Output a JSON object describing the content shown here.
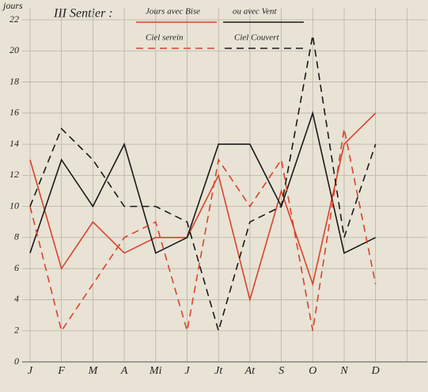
{
  "chart_data": {
    "type": "line",
    "title": "III Sentier :",
    "y_label": "jours",
    "categories": [
      "J",
      "F",
      "M",
      "A",
      "Mi",
      "J",
      "Jt",
      "At",
      "S",
      "O",
      "N",
      "D"
    ],
    "series": [
      {
        "name": "Jours avec Bise",
        "color": "#d9432b",
        "dash": false,
        "values": [
          13,
          6,
          9,
          7,
          8,
          8,
          12,
          4,
          11,
          5,
          14,
          16
        ]
      },
      {
        "name": "ou avec Vent",
        "color": "#1a1a1a",
        "dash": false,
        "values": [
          7,
          13,
          10,
          14,
          7,
          8,
          14,
          14,
          10,
          16,
          7,
          8
        ]
      },
      {
        "name": "Ciel serein",
        "color": "#d9432b",
        "dash": true,
        "values": [
          10,
          2,
          5,
          8,
          9,
          2,
          13,
          10,
          13,
          2,
          15,
          5
        ]
      },
      {
        "name": "Ciel Couvert",
        "color": "#1a1a1a",
        "dash": true,
        "values": [
          10,
          15,
          13,
          10,
          10,
          9,
          2,
          9,
          10,
          21,
          8,
          14
        ]
      }
    ],
    "ylim": [
      0,
      22
    ],
    "yticks": [
      0,
      2,
      4,
      6,
      8,
      10,
      12,
      14,
      16,
      18,
      20,
      22
    ],
    "grid": true
  }
}
